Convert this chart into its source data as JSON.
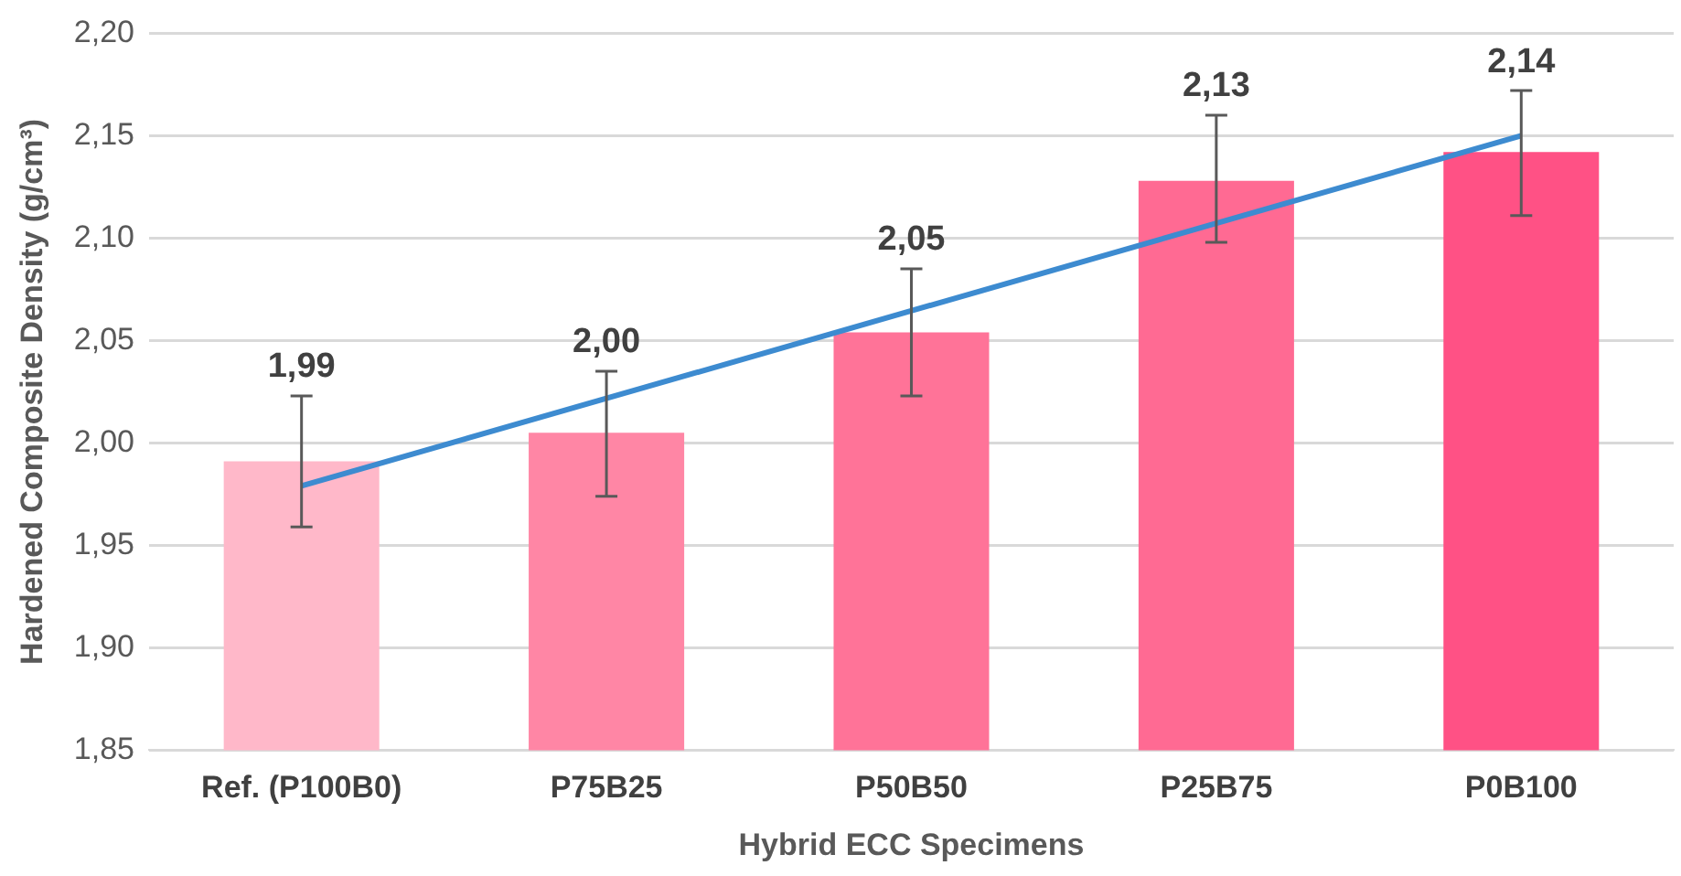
{
  "chart_data": {
    "type": "bar",
    "xlabel": "Hybrid ECC Specimens",
    "ylabel": "Hardened Composite Density (g/cm³)",
    "categories": [
      "Ref. (P100B0)",
      "P75B25",
      "P50B50",
      "P25B75",
      "P0B100"
    ],
    "series": [
      {
        "values": [
          1.991,
          2.005,
          2.054,
          2.128,
          2.142
        ],
        "colors": [
          "#ffb8c9",
          "#ff86a5",
          "#ff7398",
          "#ff6a93",
          "#ff5185"
        ],
        "errors": [
          [
            1.959,
            2.023
          ],
          [
            1.974,
            2.035
          ],
          [
            2.023,
            2.085
          ],
          [
            2.098,
            2.16
          ],
          [
            2.111,
            2.172
          ]
        ],
        "value_labels": [
          "1,99",
          "2,00",
          "2,05",
          "2,13",
          "2,14"
        ]
      },
      {
        "type": "line",
        "color": "#3d8bd0",
        "x": [
          "Ref. (P100B0)",
          "P0B100"
        ],
        "values": [
          1.979,
          2.15
        ],
        "marker": "none"
      }
    ],
    "ylim": [
      1.85,
      2.2
    ],
    "yticks": [
      {
        "value": 1.85,
        "label": "1,85"
      },
      {
        "value": 1.9,
        "label": "1,90"
      },
      {
        "value": 1.95,
        "label": "1,95"
      },
      {
        "value": 2.0,
        "label": "2,00"
      },
      {
        "value": 2.05,
        "label": "2,05"
      },
      {
        "value": 2.1,
        "label": "2,10"
      },
      {
        "value": 2.15,
        "label": "2,15"
      },
      {
        "value": 2.2,
        "label": "2,20"
      }
    ],
    "grid": "y",
    "legend": false
  }
}
